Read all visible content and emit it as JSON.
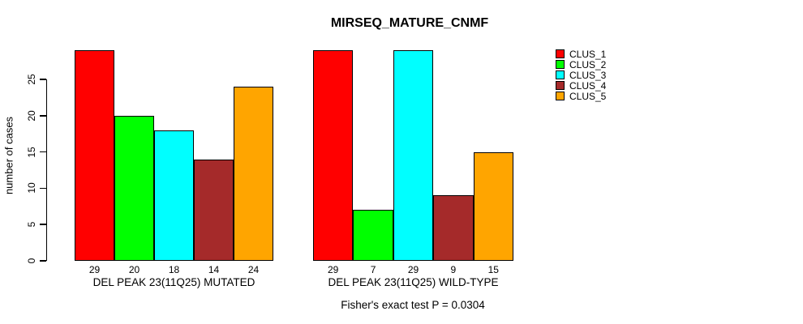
{
  "title": "MIRSEQ_MATURE_CNMF",
  "subtitle": "Fisher's exact test P = 0.0304",
  "y_axis": {
    "label": "number of cases",
    "ticks": [
      0,
      5,
      10,
      15,
      20,
      25
    ]
  },
  "legend": [
    {
      "label": "CLUS_1",
      "color": "#ff0000"
    },
    {
      "label": "CLUS_2",
      "color": "#00ff00"
    },
    {
      "label": "CLUS_3",
      "color": "#00ffff"
    },
    {
      "label": "CLUS_4",
      "color": "#a52a2a"
    },
    {
      "label": "CLUS_5",
      "color": "#ffa500"
    }
  ],
  "chart_data": {
    "type": "bar",
    "title": "MIRSEQ_MATURE_CNMF",
    "ylabel": "number of cases",
    "ylim": [
      0,
      29
    ],
    "grid": false,
    "legend_position": "right",
    "categories": [
      "CLUS_1",
      "CLUS_2",
      "CLUS_3",
      "CLUS_4",
      "CLUS_5"
    ],
    "colors": [
      "#ff0000",
      "#00ff00",
      "#00ffff",
      "#a52a2a",
      "#ffa500"
    ],
    "groups": [
      {
        "label": "DEL PEAK 23(11Q25) MUTATED",
        "values": [
          29,
          20,
          18,
          14,
          24
        ]
      },
      {
        "label": "DEL PEAK 23(11Q25) WILD-TYPE",
        "values": [
          29,
          7,
          29,
          9,
          15
        ]
      }
    ],
    "annotation": "Fisher's exact test P = 0.0304"
  }
}
